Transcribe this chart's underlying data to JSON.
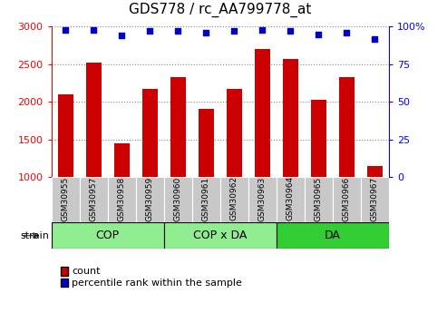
{
  "title": "GDS778 / rc_AA799778_at",
  "samples": [
    "GSM30955",
    "GSM30957",
    "GSM30958",
    "GSM30959",
    "GSM30960",
    "GSM30961",
    "GSM30962",
    "GSM30963",
    "GSM30964",
    "GSM30965",
    "GSM30966",
    "GSM30967"
  ],
  "counts": [
    2100,
    2525,
    1440,
    2175,
    2325,
    1900,
    2175,
    2700,
    2575,
    2025,
    2325,
    1150
  ],
  "percentile": [
    98,
    98,
    94,
    97,
    97,
    96,
    97,
    98,
    97,
    95,
    96,
    92
  ],
  "groups": [
    {
      "label": "COP",
      "start": 0,
      "end": 4,
      "color": "#90EE90"
    },
    {
      "label": "COP x DA",
      "start": 4,
      "end": 8,
      "color": "#90EE90"
    },
    {
      "label": "DA",
      "start": 8,
      "end": 12,
      "color": "#32CD32"
    }
  ],
  "ylim_left": [
    1000,
    3000
  ],
  "ylim_right": [
    0,
    100
  ],
  "yticks_left": [
    1000,
    1500,
    2000,
    2500,
    3000
  ],
  "yticks_right": [
    0,
    25,
    50,
    75,
    100
  ],
  "bar_color": "#CC0000",
  "dot_color": "#0000CC",
  "bar_width": 0.55,
  "dot_size": 20,
  "sample_area_color": "#C8C8C8",
  "title_fontsize": 11,
  "tick_fontsize": 8,
  "label_fontsize": 8,
  "group_label_fontsize": 9,
  "sample_label_fontsize": 6.5
}
